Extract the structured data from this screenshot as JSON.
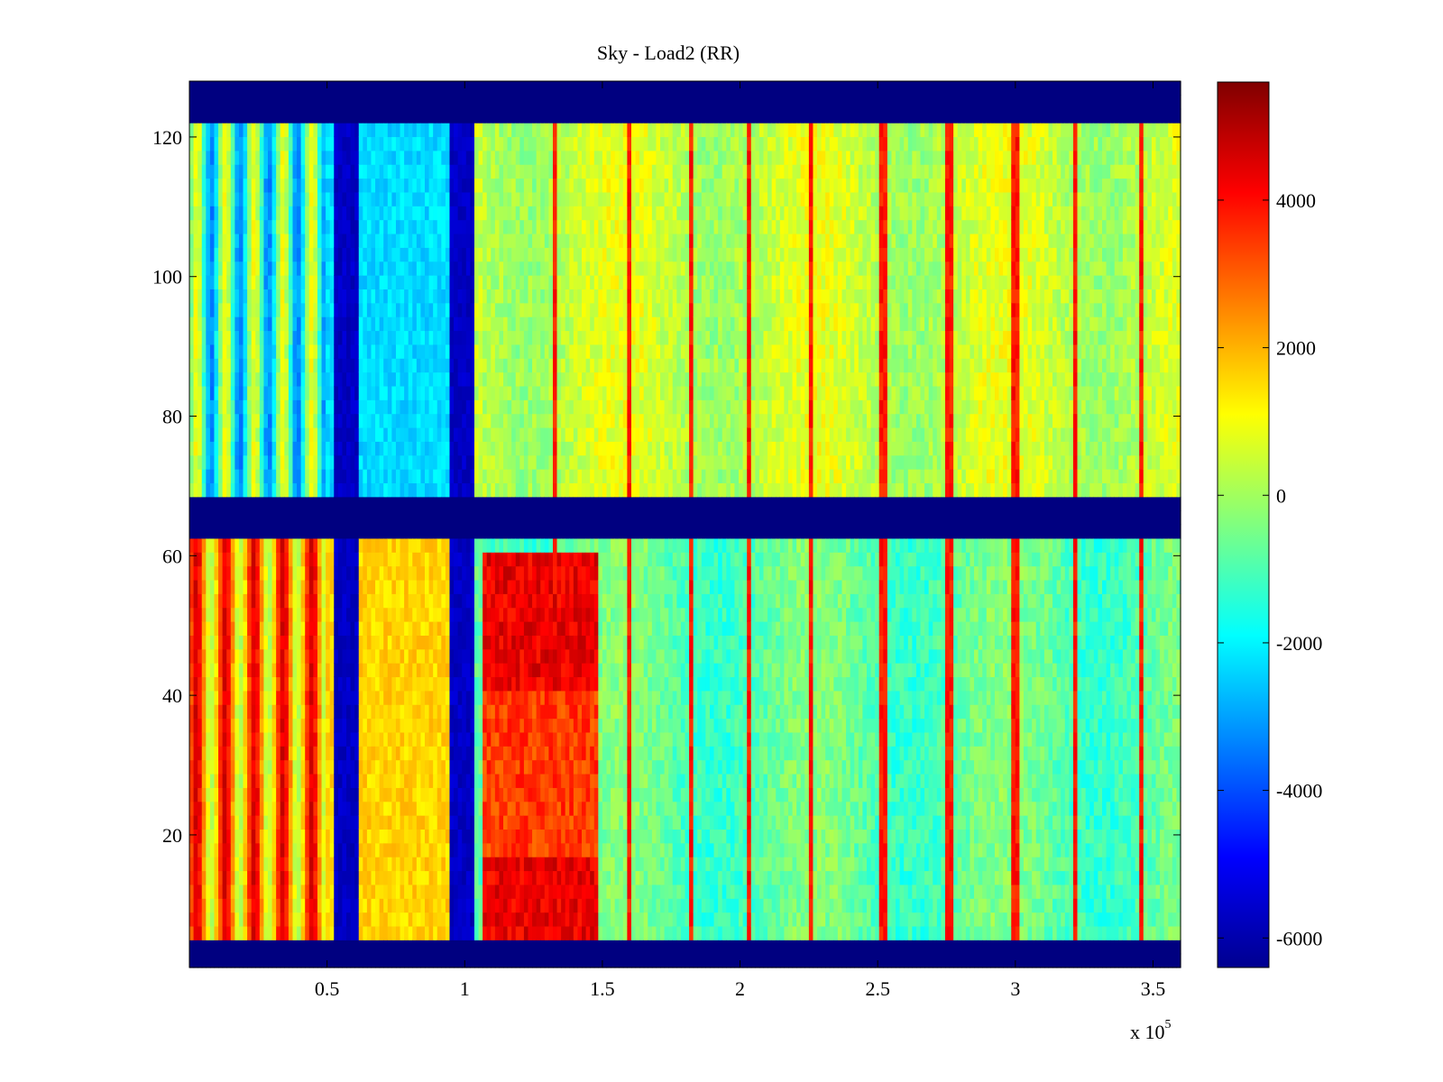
{
  "chart_data": {
    "type": "heatmap",
    "title": "Sky - Load2 (RR)",
    "xlabel": "",
    "ylabel": "",
    "x_exponent_label": "x 10",
    "x_exponent_power": "5",
    "xlim": [
      0,
      3.6
    ],
    "ylim": [
      1,
      128
    ],
    "x_ticks": [
      0.5,
      1,
      1.5,
      2,
      2.5,
      3,
      3.5
    ],
    "x_tick_labels": [
      "0.5",
      "1",
      "1.5",
      "2",
      "2.5",
      "3",
      "3.5"
    ],
    "y_ticks": [
      20,
      40,
      60,
      80,
      100,
      120
    ],
    "y_tick_labels": [
      "20",
      "40",
      "60",
      "80",
      "100",
      "120"
    ],
    "colormap": "jet",
    "clim": [
      -6400,
      5600
    ],
    "colorbar_ticks": [
      4000,
      2000,
      0,
      -2000,
      -4000,
      -6000
    ],
    "colorbar_tick_labels": [
      "4000",
      "2000",
      "0",
      "-2000",
      "-4000",
      "-6000"
    ],
    "masked_rows": [
      [
        1,
        4
      ],
      [
        62,
        68
      ],
      [
        122,
        128
      ]
    ],
    "masked_value": -6400,
    "blocked_columns": [
      [
        0.52,
        0.62
      ],
      [
        0.95,
        1.04
      ]
    ],
    "hot_region": {
      "x": [
        1.06,
        1.48
      ],
      "y": [
        5,
        61
      ],
      "value": 4600
    },
    "upper_band_mean": 0,
    "lower_band_mean": -800,
    "periodic_stripe_positions": [
      1.33,
      1.6,
      1.82,
      2.03,
      2.26,
      2.52,
      2.76,
      3.0,
      3.22,
      3.46
    ],
    "periodic_stripe_value": 3400,
    "grid": false
  }
}
